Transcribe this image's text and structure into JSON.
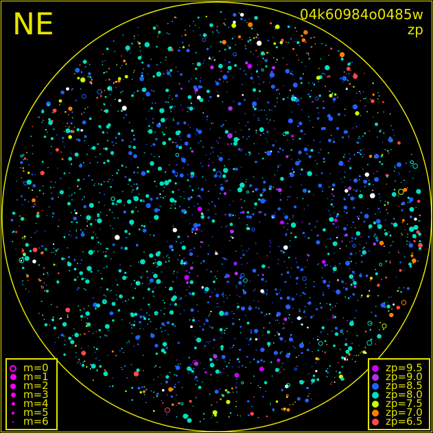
{
  "header": {
    "direction": "NE",
    "image_id": "04k60984o0485w",
    "mode": "zp"
  },
  "chart_data": {
    "type": "scatter",
    "title": "",
    "description_of_color": "zp",
    "mag_legend": [
      {
        "label": "m=0"
      },
      {
        "label": "m=1"
      },
      {
        "label": "m=2"
      },
      {
        "label": "m=3"
      },
      {
        "label": "m=4"
      },
      {
        "label": "m=5"
      },
      {
        "label": "m=6"
      }
    ],
    "zp_legend": [
      {
        "label": "zp=9.5",
        "color": "#cc00ff"
      },
      {
        "label": "zp=9.0",
        "color": "#b030f0"
      },
      {
        "label": "zp=8.5",
        "color": "#2060ff"
      },
      {
        "label": "zp=8.0",
        "color": "#00e0c0"
      },
      {
        "label": "zp=7.5",
        "color": "#c8ff00"
      },
      {
        "label": "zp=7.0",
        "color": "#ff8000"
      },
      {
        "label": "zp=6.5",
        "color": "#ff4848"
      }
    ],
    "marker_color_magnitude_legend": "#ff00ff",
    "horizon_color": "#e6e600"
  }
}
